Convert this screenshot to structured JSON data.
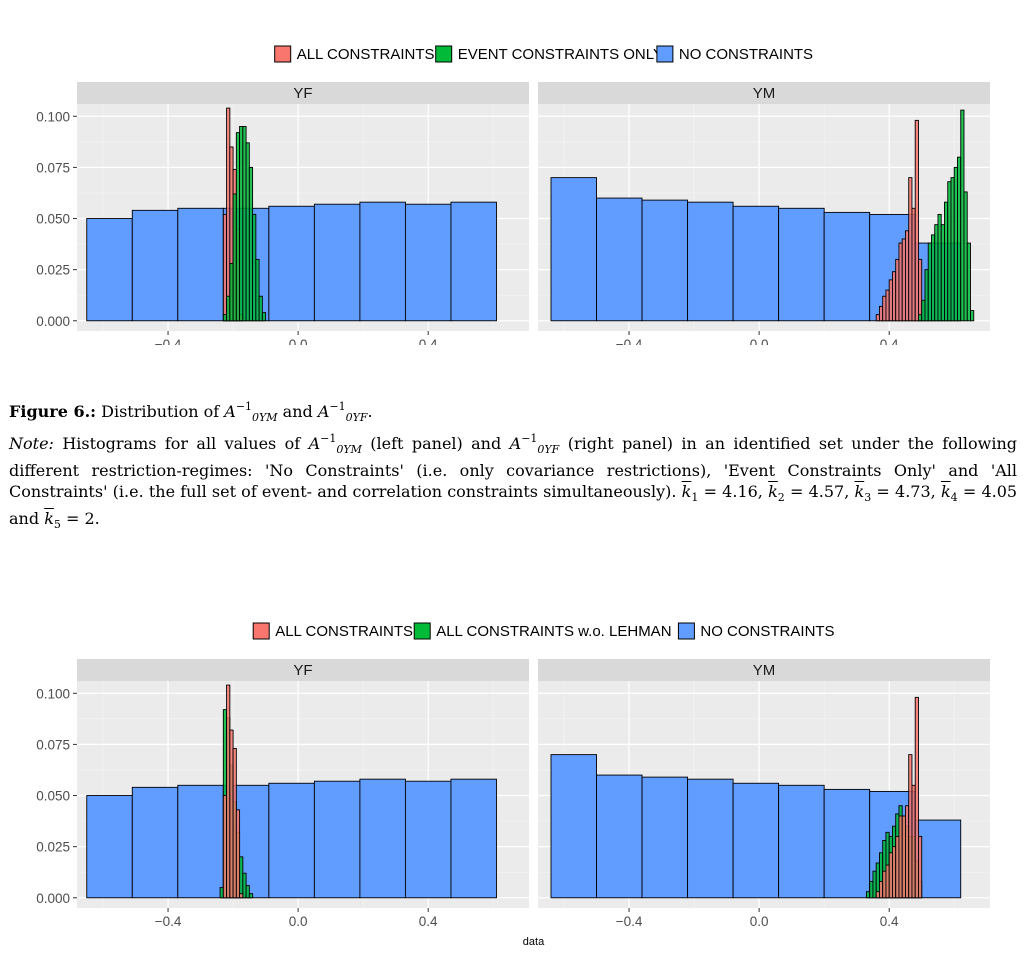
{
  "figures": [
    {
      "legend": [
        {
          "label": "ALL CONSTRAINTS",
          "color": "#f8766d"
        },
        {
          "label": "EVENT CONSTRAINTS ONLY",
          "color": "#00ba38"
        },
        {
          "label": "NO CONSTRAINTS",
          "color": "#619cff"
        }
      ],
      "xlabel": "",
      "panels": [
        {
          "strip": "YF"
        },
        {
          "strip": "YM"
        }
      ]
    },
    {
      "legend": [
        {
          "label": "ALL CONSTRAINTS",
          "color": "#f8766d"
        },
        {
          "label": "ALL CONSTRAINTS w.o. LEHMAN",
          "color": "#00ba38"
        },
        {
          "label": "NO CONSTRAINTS",
          "color": "#619cff"
        }
      ],
      "xlabel": "data",
      "panels": [
        {
          "strip": "YF"
        },
        {
          "strip": "YM"
        }
      ]
    }
  ],
  "caption": {
    "fig_label": "Figure 6.:",
    "title_pre": "Distribution of",
    "A": "A",
    "sup_inv": "−1",
    "sub_ym": "0YM",
    "sub_yf": "0YF",
    "and": "and",
    "period": ".",
    "note_label": "Note:",
    "note_part1": "Histograms for all values of",
    "note_part2": "(left panel) and",
    "note_part3": "(right panel) in an identified set under the following different restriction-regimes: 'No Constraints' (i.e. only covariance restrictions), 'Event Constraints Only' and 'All Constraints' (i.e. the full set of event- and correlation constraints simultaneously).",
    "k_symbol": "k",
    "k_values": [
      {
        "index": "1",
        "value": "= 4.16,"
      },
      {
        "index": "2",
        "value": "= 4.57,"
      },
      {
        "index": "3",
        "value": "= 4.73,"
      },
      {
        "index": "4",
        "value": "= 4.05 and"
      },
      {
        "index": "5",
        "value": "= 2."
      }
    ]
  },
  "chart_data": [
    {
      "type": "bar",
      "subtype": "histogram",
      "facets": [
        "YF",
        "YM"
      ],
      "legend_position": "top",
      "grid": true,
      "xticks": [
        -0.4,
        0.0,
        0.4
      ],
      "yticks": [
        0.0,
        0.025,
        0.05,
        0.075,
        0.1
      ],
      "xlim": [
        -0.68,
        0.71
      ],
      "ylim": [
        -0.005,
        0.106
      ],
      "series": [
        {
          "name": "NO CONSTRAINTS",
          "color": "#619cff",
          "YF": {
            "bin_edges": [
              -0.65,
              -0.51,
              -0.37,
              -0.23,
              -0.09,
              0.05,
              0.19,
              0.33,
              0.47,
              0.61
            ],
            "values": [
              0.05,
              0.054,
              0.055,
              0.055,
              0.056,
              0.057,
              0.058,
              0.057,
              0.058
            ]
          },
          "YM": {
            "bin_edges": [
              -0.64,
              -0.5,
              -0.36,
              -0.22,
              -0.08,
              0.06,
              0.2,
              0.34,
              0.48,
              0.62
            ],
            "values": [
              0.07,
              0.06,
              0.059,
              0.058,
              0.056,
              0.055,
              0.053,
              0.052,
              0.038
            ]
          }
        },
        {
          "name": "ALL CONSTRAINTS",
          "color": "#f8766d",
          "YF": {
            "bin_edges": [
              -0.23,
              -0.22,
              -0.21,
              -0.2,
              -0.19,
              -0.18,
              -0.17
            ],
            "values": [
              0.052,
              0.104,
              0.085,
              0.074,
              0.045,
              0.003
            ]
          },
          "YM": {
            "bin_edges": [
              0.36,
              0.37,
              0.38,
              0.39,
              0.4,
              0.41,
              0.42,
              0.43,
              0.44,
              0.45,
              0.46,
              0.47,
              0.48,
              0.49,
              0.5
            ],
            "values": [
              0.003,
              0.007,
              0.012,
              0.015,
              0.02,
              0.024,
              0.03,
              0.038,
              0.04,
              0.044,
              0.07,
              0.055,
              0.098,
              0.03
            ]
          }
        },
        {
          "name": "EVENT CONSTRAINTS ONLY",
          "color": "#00ba38",
          "YF": {
            "bin_edges": [
              -0.23,
              -0.22,
              -0.21,
              -0.2,
              -0.19,
              -0.18,
              -0.17,
              -0.16,
              -0.15,
              -0.14,
              -0.13,
              -0.12,
              -0.11,
              -0.1
            ],
            "values": [
              0.003,
              0.012,
              0.028,
              0.062,
              0.092,
              0.095,
              0.095,
              0.087,
              0.075,
              0.052,
              0.03,
              0.012,
              0.004
            ]
          },
          "YM": {
            "bin_edges": [
              0.49,
              0.5,
              0.51,
              0.52,
              0.53,
              0.54,
              0.55,
              0.56,
              0.57,
              0.58,
              0.59,
              0.6,
              0.61,
              0.62,
              0.63,
              0.64,
              0.65,
              0.66
            ],
            "values": [
              0.003,
              0.01,
              0.025,
              0.038,
              0.042,
              0.047,
              0.052,
              0.047,
              0.058,
              0.068,
              0.07,
              0.075,
              0.08,
              0.103,
              0.063,
              0.038,
              0.005
            ]
          }
        }
      ]
    },
    {
      "type": "bar",
      "subtype": "histogram",
      "facets": [
        "YF",
        "YM"
      ],
      "legend_position": "top",
      "grid": true,
      "xlabel": "data",
      "xticks": [
        -0.4,
        0.0,
        0.4
      ],
      "yticks": [
        0.0,
        0.025,
        0.05,
        0.075,
        0.1
      ],
      "xlim": [
        -0.68,
        0.71
      ],
      "ylim": [
        -0.005,
        0.106
      ],
      "series": [
        {
          "name": "NO CONSTRAINTS",
          "color": "#619cff",
          "YF": {
            "bin_edges": [
              -0.65,
              -0.51,
              -0.37,
              -0.23,
              -0.09,
              0.05,
              0.19,
              0.33,
              0.47,
              0.61
            ],
            "values": [
              0.05,
              0.054,
              0.055,
              0.055,
              0.056,
              0.057,
              0.058,
              0.057,
              0.058
            ]
          },
          "YM": {
            "bin_edges": [
              -0.64,
              -0.5,
              -0.36,
              -0.22,
              -0.08,
              0.06,
              0.2,
              0.34,
              0.48,
              0.62
            ],
            "values": [
              0.07,
              0.06,
              0.059,
              0.058,
              0.056,
              0.055,
              0.053,
              0.052,
              0.038
            ]
          }
        },
        {
          "name": "ALL CONSTRAINTS w.o. LEHMAN",
          "color": "#00ba38",
          "YF": {
            "bin_edges": [
              -0.24,
              -0.23,
              -0.22,
              -0.21,
              -0.2,
              -0.19,
              -0.18,
              -0.17,
              -0.16,
              -0.15,
              -0.14
            ],
            "values": [
              0.005,
              0.092,
              0.088,
              0.065,
              0.047,
              0.032,
              0.02,
              0.012,
              0.006,
              0.002
            ]
          },
          "YM": {
            "bin_edges": [
              0.33,
              0.34,
              0.35,
              0.36,
              0.37,
              0.38,
              0.39,
              0.4,
              0.41,
              0.42,
              0.43,
              0.44,
              0.45,
              0.46,
              0.47,
              0.48,
              0.49,
              0.5
            ],
            "values": [
              0.003,
              0.008,
              0.013,
              0.017,
              0.022,
              0.028,
              0.032,
              0.03,
              0.035,
              0.041,
              0.045,
              0.04,
              0.035,
              0.03,
              0.03,
              0.018,
              0.008
            ]
          }
        },
        {
          "name": "ALL CONSTRAINTS",
          "color": "#f8766d",
          "YF": {
            "bin_edges": [
              -0.23,
              -0.22,
              -0.21,
              -0.2,
              -0.19,
              -0.18,
              -0.17
            ],
            "values": [
              0.05,
              0.104,
              0.082,
              0.073,
              0.043,
              0.002
            ]
          },
          "YM": {
            "bin_edges": [
              0.36,
              0.37,
              0.38,
              0.39,
              0.4,
              0.41,
              0.42,
              0.43,
              0.44,
              0.45,
              0.46,
              0.47,
              0.48,
              0.49,
              0.5
            ],
            "values": [
              0.003,
              0.008,
              0.013,
              0.016,
              0.022,
              0.025,
              0.03,
              0.04,
              0.04,
              0.045,
              0.07,
              0.055,
              0.098,
              0.03
            ]
          }
        }
      ]
    }
  ]
}
